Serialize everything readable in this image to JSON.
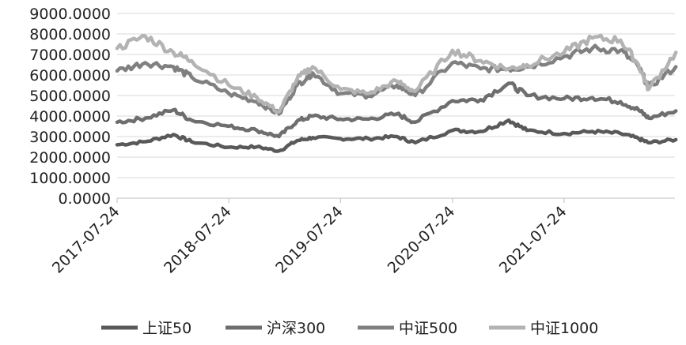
{
  "chart_data": {
    "type": "line",
    "ylim": [
      0,
      9000
    ],
    "yticks": [
      "0.0000",
      "1000.0000",
      "2000.0000",
      "3000.0000",
      "4000.0000",
      "5000.0000",
      "6000.0000",
      "7000.0000",
      "8000.0000",
      "9000.0000"
    ],
    "xticks": [
      "2017-07-24",
      "2018-07-24",
      "2019-07-24",
      "2020-07-24",
      "2021-07-24"
    ],
    "grid": true,
    "legend_position": "bottom",
    "x": [
      "2017-07-24",
      "2017-10-24",
      "2018-01-24",
      "2018-03-24",
      "2018-07-24",
      "2018-10-24",
      "2019-01-04",
      "2019-03-04",
      "2019-04-24",
      "2019-07-24",
      "2019-10-24",
      "2020-01-24",
      "2020-03-24",
      "2020-07-24",
      "2020-10-24",
      "2021-01-24",
      "2021-03-24",
      "2021-07-24",
      "2021-10-24",
      "2022-01-24",
      "2022-03-24",
      "2022-04-26",
      "2022-07-24"
    ],
    "series": [
      {
        "name": "上证50",
        "color": "#595959",
        "values": [
          2600,
          2750,
          3100,
          2750,
          2480,
          2500,
          2300,
          2800,
          2950,
          2900,
          2900,
          3000,
          2700,
          3300,
          3250,
          3800,
          3300,
          3150,
          3250,
          3150,
          2900,
          2700,
          2850
        ]
      },
      {
        "name": "沪深300",
        "color": "#6e6e6e",
        "values": [
          3700,
          3900,
          4300,
          3800,
          3500,
          3300,
          3000,
          3750,
          4000,
          3850,
          3850,
          4100,
          3700,
          4750,
          4800,
          5600,
          5000,
          4850,
          4900,
          4700,
          4300,
          3900,
          4250
        ]
      },
      {
        "name": "中证500",
        "color": "#808080",
        "values": [
          6200,
          6600,
          6400,
          5900,
          5100,
          4700,
          4100,
          5500,
          6100,
          5100,
          5000,
          5500,
          5000,
          6600,
          6300,
          6300,
          6400,
          6900,
          7300,
          7200,
          6400,
          5400,
          6400
        ]
      },
      {
        "name": "中证1000",
        "color": "#b3b3b3",
        "values": [
          7300,
          7900,
          7100,
          6700,
          5500,
          4900,
          4200,
          5800,
          6400,
          5300,
          5100,
          5700,
          5200,
          7200,
          6700,
          6300,
          6500,
          7100,
          7800,
          7700,
          6500,
          5300,
          7100
        ]
      }
    ]
  }
}
